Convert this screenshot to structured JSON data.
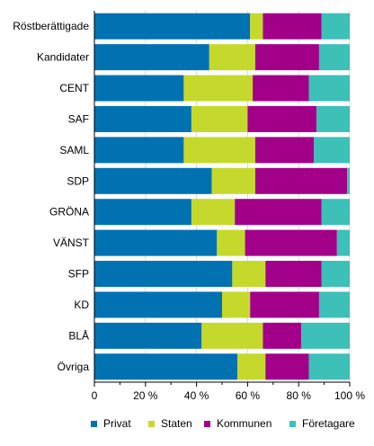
{
  "chart_data": {
    "type": "bar",
    "orientation": "horizontal",
    "stacked": true,
    "categories": [
      "Röstberättigade",
      "Kandidater",
      "CENT",
      "SAF",
      "SAML",
      "SDP",
      "GRÖNA",
      "VÄNST",
      "SFP",
      "KD",
      "BLÅ",
      "Övriga"
    ],
    "series": [
      {
        "name": "Privat",
        "color": "#0072b2",
        "values": [
          61,
          45,
          35,
          38,
          35,
          46,
          38,
          48,
          54,
          50,
          42,
          56
        ]
      },
      {
        "name": "Staten",
        "color": "#c5d92c",
        "values": [
          5,
          18,
          27,
          22,
          28,
          17,
          17,
          11,
          13,
          11,
          24,
          11
        ]
      },
      {
        "name": "Kommunen",
        "color": "#a3008a",
        "values": [
          23,
          25,
          22,
          27,
          23,
          36,
          34,
          36,
          22,
          27,
          15,
          17
        ]
      },
      {
        "name": "Företagare",
        "color": "#3cc0b8",
        "values": [
          11,
          12,
          16,
          13,
          14,
          1,
          11,
          5,
          11,
          12,
          19,
          16
        ]
      }
    ],
    "xlim": [
      0,
      100
    ],
    "x_ticks": [
      "0",
      "20 %",
      "40 %",
      "60 %",
      "80 %",
      "100 %"
    ],
    "legend_position": "bottom",
    "grid": "vertical"
  }
}
